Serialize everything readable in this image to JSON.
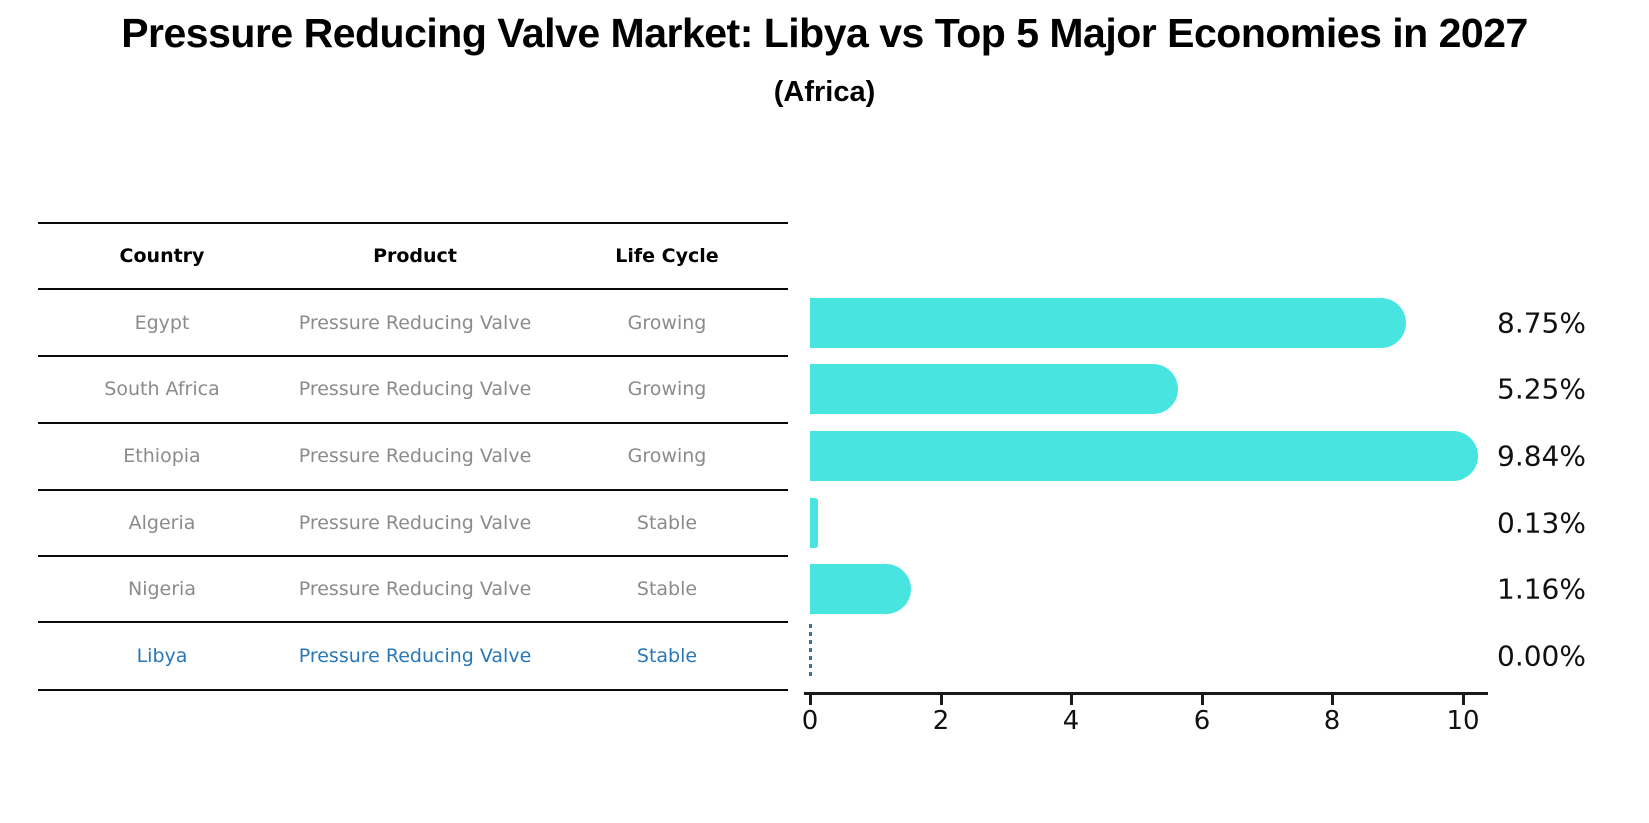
{
  "title": "Pressure Reducing Valve Market: Libya vs Top 5 Major Economies in 2027",
  "subtitle": "(Africa)",
  "table": {
    "headers": [
      "Country",
      "Product",
      "Life Cycle"
    ],
    "rows": [
      {
        "country": "Egypt",
        "product": "Pressure Reducing Valve",
        "life_cycle": "Growing",
        "value": 8.75,
        "value_label": "8.75%",
        "highlight": false
      },
      {
        "country": "South Africa",
        "product": "Pressure Reducing Valve",
        "life_cycle": "Growing",
        "value": 5.25,
        "value_label": "5.25%",
        "highlight": false
      },
      {
        "country": "Ethiopia",
        "product": "Pressure Reducing Valve",
        "life_cycle": "Growing",
        "value": 9.84,
        "value_label": "9.84%",
        "highlight": false
      },
      {
        "country": "Algeria",
        "product": "Pressure Reducing Valve",
        "life_cycle": "Stable",
        "value": 0.13,
        "value_label": "0.13%",
        "highlight": false
      },
      {
        "country": "Nigeria",
        "product": "Pressure Reducing Valve",
        "life_cycle": "Stable",
        "value": 1.16,
        "value_label": "1.16%",
        "highlight": false
      },
      {
        "country": "Libya",
        "product": "Pressure Reducing Valve",
        "life_cycle": "Stable",
        "value": 0.0,
        "value_label": "0.00%",
        "highlight": true
      }
    ]
  },
  "axis": {
    "tick_labels": [
      "0",
      "2",
      "4",
      "6",
      "8",
      "10"
    ],
    "tick_values": [
      0,
      2,
      4,
      6,
      8,
      10
    ]
  },
  "colors": {
    "bar": "#48E5E0",
    "highlight_text": "#2878b8",
    "row_text": "#8b8b8b",
    "dashed_line": "#41709f",
    "axis": "#1a1a1a",
    "table_line": "#0a0a0a"
  },
  "chart_data": {
    "type": "bar",
    "orientation": "horizontal",
    "title": "Pressure Reducing Valve Market: Libya vs Top 5 Major Economies in 2027",
    "subtitle": "(Africa)",
    "categories": [
      "Egypt",
      "South Africa",
      "Ethiopia",
      "Algeria",
      "Nigeria",
      "Libya"
    ],
    "values": [
      8.75,
      5.25,
      9.84,
      0.13,
      1.16,
      0.0
    ],
    "value_labels": [
      "8.75%",
      "5.25%",
      "9.84%",
      "0.13%",
      "1.16%",
      "0.00%"
    ],
    "products": [
      "Pressure Reducing Valve",
      "Pressure Reducing Valve",
      "Pressure Reducing Valve",
      "Pressure Reducing Valve",
      "Pressure Reducing Valve",
      "Pressure Reducing Valve"
    ],
    "life_cycles": [
      "Growing",
      "Growing",
      "Growing",
      "Stable",
      "Stable",
      "Stable"
    ],
    "xlabel": "",
    "ylabel": "",
    "xlim": [
      0,
      10.5
    ],
    "xticks": [
      0,
      2,
      4,
      6,
      8,
      10
    ],
    "bar_color": "#48E5E0",
    "highlight_category": "Libya",
    "highlight_rendering": "dashed vertical line at 0",
    "grid": false,
    "legend": false
  }
}
